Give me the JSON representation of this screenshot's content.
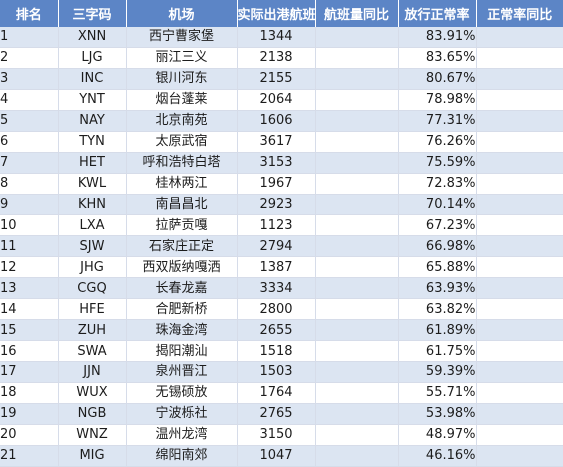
{
  "table": {
    "headers": [
      "排名",
      "三字码",
      "机场",
      "实际出港航班量",
      "航班量同比",
      "放行正常率",
      "正常率同比"
    ],
    "rows": [
      {
        "rank": "1",
        "code": "XNN",
        "name": "西宁曹家堡",
        "flights": "1344",
        "flights_yoy": "",
        "rate": "83.91%",
        "rate_yoy": ""
      },
      {
        "rank": "2",
        "code": "LJG",
        "name": "丽江三义",
        "flights": "2138",
        "flights_yoy": "",
        "rate": "83.65%",
        "rate_yoy": ""
      },
      {
        "rank": "3",
        "code": "INC",
        "name": "银川河东",
        "flights": "2155",
        "flights_yoy": "",
        "rate": "80.67%",
        "rate_yoy": ""
      },
      {
        "rank": "4",
        "code": "YNT",
        "name": "烟台蓬莱",
        "flights": "2064",
        "flights_yoy": "",
        "rate": "78.98%",
        "rate_yoy": ""
      },
      {
        "rank": "5",
        "code": "NAY",
        "name": "北京南苑",
        "flights": "1606",
        "flights_yoy": "",
        "rate": "77.31%",
        "rate_yoy": ""
      },
      {
        "rank": "6",
        "code": "TYN",
        "name": "太原武宿",
        "flights": "3617",
        "flights_yoy": "",
        "rate": "76.26%",
        "rate_yoy": ""
      },
      {
        "rank": "7",
        "code": "HET",
        "name": "呼和浩特白塔",
        "flights": "3153",
        "flights_yoy": "",
        "rate": "75.59%",
        "rate_yoy": ""
      },
      {
        "rank": "8",
        "code": "KWL",
        "name": "桂林两江",
        "flights": "1967",
        "flights_yoy": "",
        "rate": "72.83%",
        "rate_yoy": ""
      },
      {
        "rank": "9",
        "code": "KHN",
        "name": "南昌昌北",
        "flights": "2923",
        "flights_yoy": "",
        "rate": "70.14%",
        "rate_yoy": ""
      },
      {
        "rank": "10",
        "code": "LXA",
        "name": "拉萨贡嘎",
        "flights": "1123",
        "flights_yoy": "",
        "rate": "67.23%",
        "rate_yoy": ""
      },
      {
        "rank": "11",
        "code": "SJW",
        "name": "石家庄正定",
        "flights": "2794",
        "flights_yoy": "",
        "rate": "66.98%",
        "rate_yoy": ""
      },
      {
        "rank": "12",
        "code": "JHG",
        "name": "西双版纳嘎洒",
        "flights": "1387",
        "flights_yoy": "",
        "rate": "65.88%",
        "rate_yoy": ""
      },
      {
        "rank": "13",
        "code": "CGQ",
        "name": "长春龙嘉",
        "flights": "3334",
        "flights_yoy": "",
        "rate": "63.93%",
        "rate_yoy": ""
      },
      {
        "rank": "14",
        "code": "HFE",
        "name": "合肥新桥",
        "flights": "2800",
        "flights_yoy": "",
        "rate": "63.82%",
        "rate_yoy": ""
      },
      {
        "rank": "15",
        "code": "ZUH",
        "name": "珠海金湾",
        "flights": "2655",
        "flights_yoy": "",
        "rate": "61.89%",
        "rate_yoy": ""
      },
      {
        "rank": "16",
        "code": "SWA",
        "name": "揭阳潮汕",
        "flights": "1518",
        "flights_yoy": "",
        "rate": "61.75%",
        "rate_yoy": ""
      },
      {
        "rank": "17",
        "code": "JJN",
        "name": "泉州晋江",
        "flights": "1503",
        "flights_yoy": "",
        "rate": "59.39%",
        "rate_yoy": ""
      },
      {
        "rank": "18",
        "code": "WUX",
        "name": "无锡硕放",
        "flights": "1764",
        "flights_yoy": "",
        "rate": "55.71%",
        "rate_yoy": ""
      },
      {
        "rank": "19",
        "code": "NGB",
        "name": "宁波栎社",
        "flights": "2765",
        "flights_yoy": "",
        "rate": "53.98%",
        "rate_yoy": ""
      },
      {
        "rank": "20",
        "code": "WNZ",
        "name": "温州龙湾",
        "flights": "3150",
        "flights_yoy": "",
        "rate": "48.97%",
        "rate_yoy": ""
      },
      {
        "rank": "21",
        "code": "MIG",
        "name": "绵阳南郊",
        "flights": "1047",
        "flights_yoy": "",
        "rate": "46.16%",
        "rate_yoy": ""
      }
    ]
  },
  "colors": {
    "header_bg": "#5c85c6",
    "header_text": "#ffffff",
    "band_odd": "#dce5f2",
    "band_even": "#ffffff"
  }
}
